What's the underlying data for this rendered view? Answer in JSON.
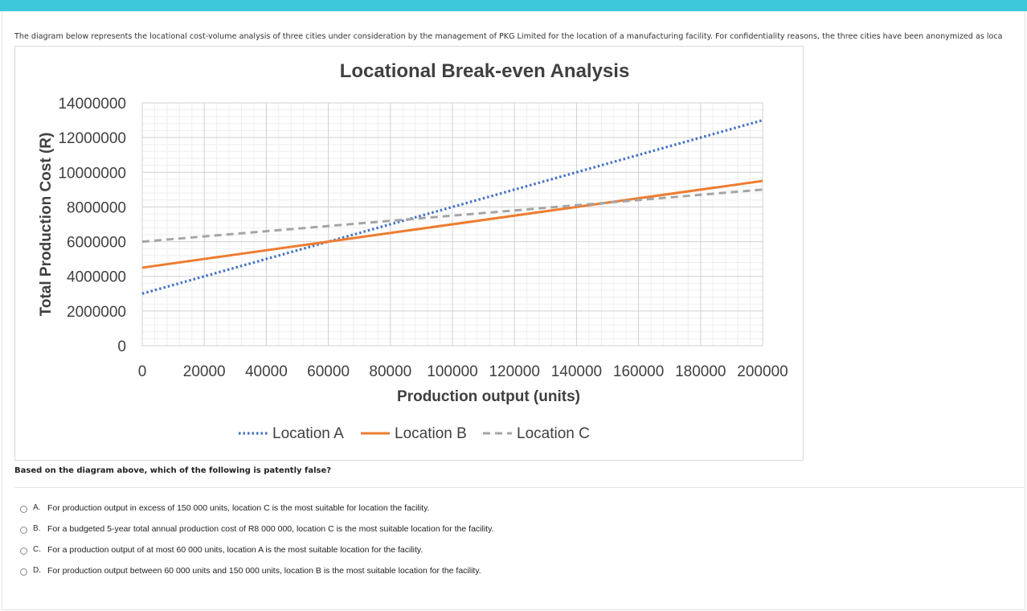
{
  "intro_text": "The diagram below represents the locational cost-volume analysis of three cities under consideration by the management of PKG Limited for the location of a manufacturing facility. For confidentiality reasons, the three cities have been anonymized as loca",
  "question": "Based on the diagram above, which of the following is patently false?",
  "options": [
    {
      "letter": "A.",
      "text": "For production output in excess of 150 000 units, location C is the most suitable for location the facility."
    },
    {
      "letter": "B.",
      "text": "For a budgeted 5-year total annual production cost of R8 000 000, location C is the most suitable location for the facility."
    },
    {
      "letter": "C.",
      "text": "For a production output of at most 60 000 units, location A is the most suitable location for the facility."
    },
    {
      "letter": "D.",
      "text": "For production output between 60 000 units and 150 000 units, location B is the most suitable location for the facility."
    }
  ],
  "colors": {
    "accent_bar": "#3cc8d8",
    "location_a": "#4472c4",
    "location_b": "#ed7d31",
    "location_c": "#a5a5a5"
  },
  "chart_data": {
    "type": "line",
    "title": "Locational Break-even Analysis",
    "xlabel": "Production output (units)",
    "ylabel": "Total Production Cost (R)",
    "xlim": [
      0,
      200000
    ],
    "ylim": [
      0,
      14000000
    ],
    "x_ticks": [
      "0",
      "20000",
      "40000",
      "60000",
      "80000",
      "100000",
      "120000",
      "140000",
      "160000",
      "180000",
      "200000"
    ],
    "y_ticks": [
      "0",
      "2000000",
      "4000000",
      "6000000",
      "8000000",
      "10000000",
      "12000000",
      "14000000"
    ],
    "grid": true,
    "legend": "bottom",
    "series": [
      {
        "name": "Location A",
        "style": "dotted",
        "x": [
          0,
          200000
        ],
        "y": [
          3000000,
          13000000
        ]
      },
      {
        "name": "Location B",
        "style": "solid",
        "x": [
          0,
          200000
        ],
        "y": [
          4500000,
          9500000
        ]
      },
      {
        "name": "Location C",
        "style": "dashed",
        "x": [
          0,
          200000
        ],
        "y": [
          6000000,
          9000000
        ]
      }
    ]
  }
}
